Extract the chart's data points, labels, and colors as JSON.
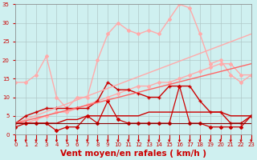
{
  "xlabel": "Vent moyen/en rafales ( km/h )",
  "xlim": [
    0,
    23
  ],
  "ylim": [
    0,
    35
  ],
  "yticks": [
    0,
    5,
    10,
    15,
    20,
    25,
    30,
    35
  ],
  "xticks": [
    0,
    1,
    2,
    3,
    4,
    5,
    6,
    7,
    8,
    9,
    10,
    11,
    12,
    13,
    14,
    15,
    16,
    17,
    18,
    19,
    20,
    21,
    22,
    23
  ],
  "bg_color": "#cff0f0",
  "grid_color": "#b0c8c8",
  "series": [
    {
      "x": [
        0,
        1,
        2,
        3,
        4,
        5,
        6,
        7,
        8,
        9,
        10,
        11,
        12,
        13,
        14,
        15,
        16,
        17,
        18,
        19,
        20,
        21,
        22,
        23
      ],
      "y": [
        14,
        14,
        16,
        21,
        10,
        7,
        10,
        10,
        20,
        27,
        30,
        28,
        27,
        28,
        27,
        31,
        35,
        34,
        27,
        19,
        20,
        16,
        14,
        16
      ],
      "color": "#ffaaaa",
      "lw": 1.0,
      "marker": "D",
      "ms": 2.0
    },
    {
      "x": [
        0,
        1,
        2,
        3,
        4,
        5,
        6,
        7,
        8,
        9,
        10,
        11,
        12,
        13,
        14,
        15,
        16,
        17,
        18,
        19,
        20,
        21,
        22,
        23
      ],
      "y": [
        3,
        3,
        4,
        5,
        6,
        6,
        7,
        8,
        9,
        10,
        11,
        12,
        13,
        13,
        14,
        14,
        15,
        16,
        17,
        18,
        19,
        19,
        16,
        16
      ],
      "color": "#ffaaaa",
      "lw": 1.0,
      "marker": "D",
      "ms": 2.0
    },
    {
      "x": [
        0,
        1,
        2,
        3,
        4,
        5,
        6,
        7,
        8,
        9,
        10,
        11,
        12,
        13,
        14,
        15,
        16,
        17,
        18,
        19,
        20,
        21,
        22,
        23
      ],
      "y": [
        3,
        5,
        6,
        7,
        7,
        7,
        7,
        7,
        9,
        14,
        12,
        12,
        11,
        10,
        10,
        13,
        13,
        13,
        9,
        6,
        6,
        3,
        3,
        5
      ],
      "color": "#cc0000",
      "lw": 1.0,
      "marker": "+",
      "ms": 3.5
    },
    {
      "x": [
        0,
        1,
        2,
        3,
        4,
        5,
        6,
        7,
        8,
        9,
        10,
        11,
        12,
        13,
        14,
        15,
        16,
        17,
        18,
        19,
        20,
        21,
        22,
        23
      ],
      "y": [
        2,
        3,
        3,
        3,
        1,
        2,
        2,
        5,
        3,
        9,
        4,
        3,
        3,
        3,
        3,
        3,
        13,
        3,
        3,
        2,
        2,
        2,
        2,
        5
      ],
      "color": "#cc0000",
      "lw": 0.9,
      "marker": "D",
      "ms": 2.0
    },
    {
      "x": [
        0,
        23
      ],
      "y": [
        3,
        27
      ],
      "color": "#ffaaaa",
      "lw": 1.0,
      "marker": null,
      "ms": 0
    },
    {
      "x": [
        0,
        23
      ],
      "y": [
        3,
        19
      ],
      "color": "#ff6666",
      "lw": 1.0,
      "marker": null,
      "ms": 0
    },
    {
      "x": [
        0,
        1,
        2,
        3,
        4,
        5,
        6,
        7,
        8,
        9,
        10,
        11,
        12,
        13,
        14,
        15,
        16,
        17,
        18,
        19,
        20,
        21,
        22,
        23
      ],
      "y": [
        3,
        3,
        3,
        3,
        3,
        4,
        4,
        5,
        5,
        5,
        5,
        5,
        5,
        6,
        6,
        6,
        6,
        6,
        6,
        6,
        6,
        5,
        5,
        5
      ],
      "color": "#cc0000",
      "lw": 1.0,
      "marker": null,
      "ms": 0
    },
    {
      "x": [
        0,
        1,
        2,
        3,
        4,
        5,
        6,
        7,
        8,
        9,
        10,
        11,
        12,
        13,
        14,
        15,
        16,
        17,
        18,
        19,
        20,
        21,
        22,
        23
      ],
      "y": [
        3,
        3,
        3,
        3,
        3,
        3,
        3,
        3,
        3,
        3,
        3,
        3,
        3,
        3,
        3,
        3,
        3,
        3,
        3,
        3,
        3,
        3,
        3,
        3
      ],
      "color": "#880000",
      "lw": 0.8,
      "marker": null,
      "ms": 0
    }
  ],
  "tick_label_color": "#cc0000",
  "tick_label_size": 5.0,
  "xlabel_color": "#cc0000",
  "xlabel_size": 7.5
}
